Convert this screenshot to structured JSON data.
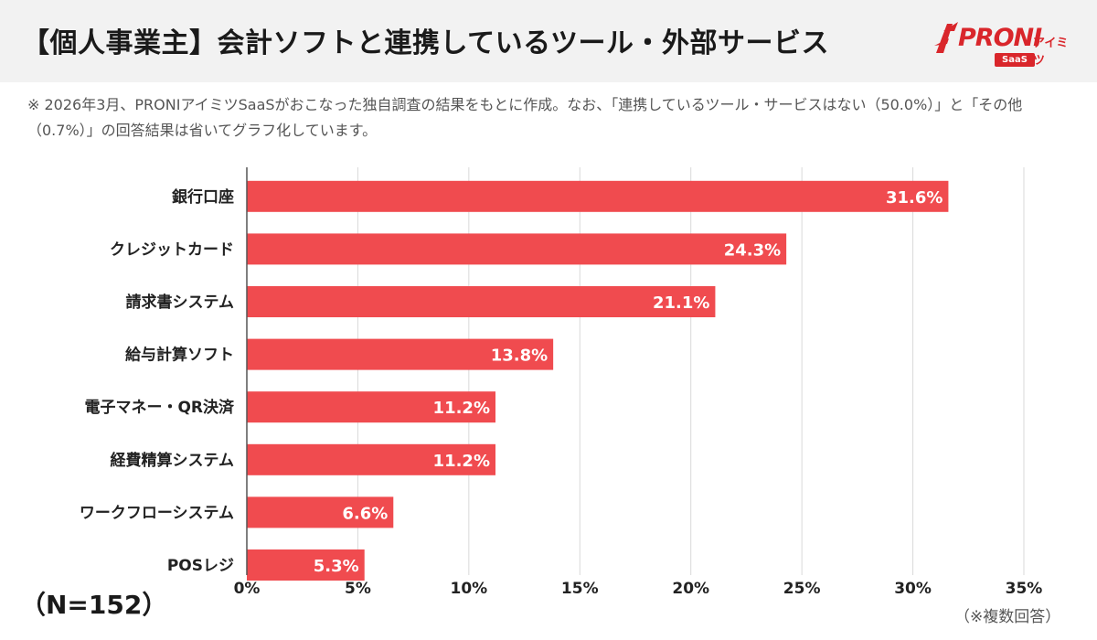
{
  "header": {
    "title": "【個人事業主】会計ソフトと連携しているツール・外部サービス",
    "logo_text": "PRONI",
    "logo_kana": "アイミツ",
    "logo_badge": "SaaS"
  },
  "note": "※ 2026年3月、PRONIアイミツSaaSがおこなった独自調査の結果をもとに作成。なお、「連携しているツール・サービスはない（50.0%）」と「その他（0.7%）」の回答結果は省いてグラフ化しています。",
  "sample_size": "（N=152）",
  "footnote": "（※複数回答）",
  "colors": {
    "bar": "#f04b4f",
    "brand": "#d9262b",
    "grid": "#d9d9d9"
  },
  "chart_data": {
    "type": "bar",
    "orientation": "horizontal",
    "categories": [
      "銀行口座",
      "クレジットカード",
      "請求書システム",
      "給与計算ソフト",
      "電子マネー・QR決済",
      "経費精算システム",
      "ワークフローシステム",
      "POSレジ"
    ],
    "values": [
      31.6,
      24.3,
      21.1,
      13.8,
      11.2,
      11.2,
      6.6,
      5.3
    ],
    "value_labels": [
      "31.6%",
      "24.3%",
      "21.1%",
      "13.8%",
      "11.2%",
      "11.2%",
      "6.6%",
      "5.3%"
    ],
    "xlim": [
      0,
      35
    ],
    "xticks": [
      0,
      5,
      10,
      15,
      20,
      25,
      30,
      35
    ],
    "xtick_labels": [
      "0%",
      "5%",
      "10%",
      "15%",
      "20%",
      "25%",
      "30%",
      "35%"
    ],
    "grid": true
  }
}
